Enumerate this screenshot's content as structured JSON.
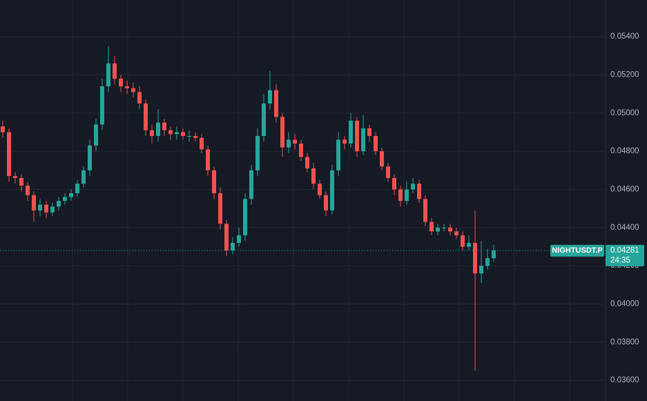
{
  "chart_data": {
    "type": "candlestick",
    "symbol": "NIGHTUSDT.P",
    "last_price": 0.04281,
    "countdown": "24:35",
    "up_color": "#26a69a",
    "down_color": "#ef5350",
    "grid": true,
    "ylim": [
      0.03492,
      0.05592
    ],
    "yticks": [
      {
        "value": 0.036,
        "label": "0.03600"
      },
      {
        "value": 0.038,
        "label": "0.03800"
      },
      {
        "value": 0.04,
        "label": "0.04000"
      },
      {
        "value": 0.042,
        "label": "0.04200"
      },
      {
        "value": 0.044,
        "label": "0.04400"
      },
      {
        "value": 0.046,
        "label": "0.04600"
      },
      {
        "value": 0.048,
        "label": "0.04800"
      },
      {
        "value": 0.05,
        "label": "0.05000"
      },
      {
        "value": 0.052,
        "label": "0.05200"
      },
      {
        "value": 0.054,
        "label": "0.05400"
      }
    ],
    "open": [
      0.0493,
      0.049,
      0.0467,
      0.0466,
      0.0462,
      0.0457,
      0.0449,
      0.0452,
      0.0448,
      0.0451,
      0.0454,
      0.0456,
      0.0458,
      0.0463,
      0.047,
      0.0483,
      0.0494,
      0.0514,
      0.0526,
      0.0518,
      0.0514,
      0.0513,
      0.0511,
      0.0505,
      0.0491,
      0.0488,
      0.0495,
      0.0491,
      0.0489,
      0.049,
      0.0488,
      0.0488,
      0.0487,
      0.0481,
      0.047,
      0.0458,
      0.0442,
      0.0428,
      0.0432,
      0.0436,
      0.0455,
      0.047,
      0.0488,
      0.0505,
      0.0512,
      0.0498,
      0.0482,
      0.0486,
      0.0484,
      0.0477,
      0.0471,
      0.0463,
      0.0457,
      0.0449,
      0.047,
      0.0486,
      0.0484,
      0.0496,
      0.048,
      0.0492,
      0.0488,
      0.048,
      0.0472,
      0.0466,
      0.046,
      0.0454,
      0.046,
      0.0463,
      0.0455,
      0.0443,
      0.0438,
      0.044,
      0.044,
      0.0438,
      0.0436,
      0.043,
      0.0432,
      0.0416,
      0.042,
      0.0424
    ],
    "high": [
      0.0496,
      0.0492,
      0.0469,
      0.0468,
      0.0464,
      0.0459,
      0.0455,
      0.0454,
      0.0453,
      0.0456,
      0.0458,
      0.046,
      0.0465,
      0.0472,
      0.0486,
      0.0497,
      0.0518,
      0.0535,
      0.053,
      0.052,
      0.0517,
      0.0516,
      0.0514,
      0.0507,
      0.0494,
      0.0502,
      0.0497,
      0.0493,
      0.0493,
      0.0492,
      0.0491,
      0.049,
      0.0489,
      0.0483,
      0.0472,
      0.0461,
      0.0444,
      0.0435,
      0.044,
      0.0458,
      0.0473,
      0.0492,
      0.051,
      0.0522,
      0.0515,
      0.05,
      0.049,
      0.0489,
      0.0486,
      0.0479,
      0.0474,
      0.0465,
      0.0459,
      0.0473,
      0.049,
      0.0488,
      0.05,
      0.0498,
      0.0499,
      0.0494,
      0.049,
      0.0482,
      0.0474,
      0.0468,
      0.0462,
      0.0464,
      0.0466,
      0.0465,
      0.0457,
      0.0445,
      0.0442,
      0.0442,
      0.0442,
      0.044,
      0.0438,
      0.0436,
      0.0449,
      0.0433,
      0.0429,
      0.0431
    ],
    "low": [
      0.0487,
      0.0464,
      0.0463,
      0.0459,
      0.0454,
      0.0443,
      0.0446,
      0.0445,
      0.0446,
      0.0449,
      0.0452,
      0.0454,
      0.0456,
      0.0461,
      0.0467,
      0.048,
      0.0491,
      0.0511,
      0.0515,
      0.0511,
      0.051,
      0.0508,
      0.0502,
      0.0488,
      0.0484,
      0.0485,
      0.0488,
      0.0486,
      0.0486,
      0.0486,
      0.0485,
      0.0485,
      0.0479,
      0.0467,
      0.0455,
      0.0439,
      0.0425,
      0.0426,
      0.043,
      0.0433,
      0.0452,
      0.0467,
      0.0485,
      0.0502,
      0.0495,
      0.0477,
      0.0479,
      0.0481,
      0.0475,
      0.0469,
      0.046,
      0.0455,
      0.0446,
      0.0447,
      0.0467,
      0.0481,
      0.0482,
      0.0477,
      0.0478,
      0.0485,
      0.0478,
      0.047,
      0.0464,
      0.0457,
      0.0451,
      0.0452,
      0.0458,
      0.0453,
      0.0441,
      0.0436,
      0.0436,
      0.0438,
      0.0436,
      0.0434,
      0.0428,
      0.0428,
      0.0365,
      0.0411,
      0.0418,
      0.0422
    ],
    "close": [
      0.049,
      0.0467,
      0.0466,
      0.0462,
      0.0457,
      0.0449,
      0.0452,
      0.0448,
      0.0451,
      0.0454,
      0.0456,
      0.0458,
      0.0463,
      0.047,
      0.0483,
      0.0494,
      0.0514,
      0.0526,
      0.0518,
      0.0514,
      0.0513,
      0.0511,
      0.0505,
      0.0491,
      0.0488,
      0.0495,
      0.0491,
      0.0489,
      0.049,
      0.0488,
      0.0488,
      0.0487,
      0.0481,
      0.047,
      0.0458,
      0.0442,
      0.0428,
      0.0432,
      0.0436,
      0.0455,
      0.047,
      0.0488,
      0.0505,
      0.0512,
      0.0498,
      0.0482,
      0.0486,
      0.0484,
      0.0477,
      0.0471,
      0.0463,
      0.0457,
      0.0449,
      0.047,
      0.0486,
      0.0484,
      0.0496,
      0.048,
      0.0492,
      0.0488,
      0.048,
      0.0472,
      0.0466,
      0.046,
      0.0454,
      0.046,
      0.0463,
      0.0455,
      0.0443,
      0.0438,
      0.044,
      0.044,
      0.0438,
      0.0436,
      0.043,
      0.0432,
      0.0416,
      0.042,
      0.0424,
      0.04281
    ]
  }
}
